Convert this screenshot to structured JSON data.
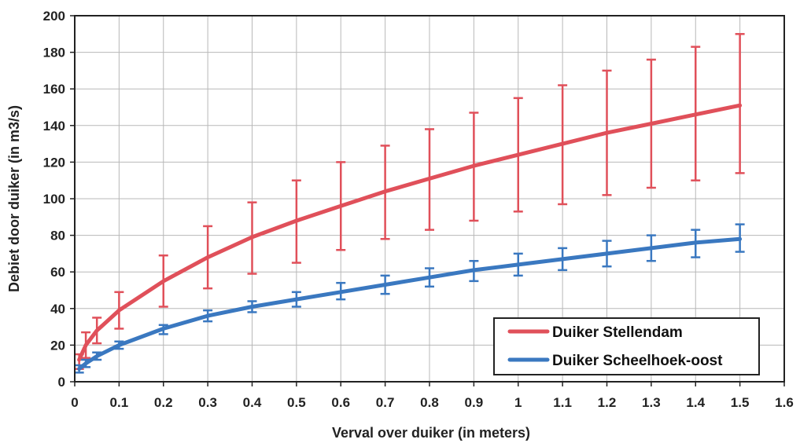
{
  "chart_data": {
    "type": "line",
    "title": "",
    "xlabel": "Verval over duiker (in meters)",
    "ylabel": "Debiet door duiker (in m3/s)",
    "xlim": [
      0,
      1.6
    ],
    "ylim": [
      0,
      200
    ],
    "x_ticks": [
      "0",
      "0.1",
      "0.2",
      "0.3",
      "0.4",
      "0.5",
      "0.6",
      "0.7",
      "0.8",
      "0.9",
      "1",
      "1.1",
      "1.2",
      "1.3",
      "1.4",
      "1.5",
      "1.6"
    ],
    "y_ticks": [
      "0",
      "20",
      "40",
      "60",
      "80",
      "100",
      "120",
      "140",
      "160",
      "180",
      "200"
    ],
    "grid": true,
    "legend_position": "bottom-right",
    "series": [
      {
        "name": "Duiker Stellendam",
        "color": "#e0505a",
        "x": [
          0.01,
          0.025,
          0.05,
          0.1,
          0.2,
          0.3,
          0.4,
          0.5,
          0.6,
          0.7,
          0.8,
          0.9,
          1.0,
          1.1,
          1.2,
          1.3,
          1.4,
          1.5
        ],
        "y": [
          12,
          20,
          28,
          39,
          55,
          68,
          79,
          88,
          96,
          104,
          111,
          118,
          124,
          130,
          136,
          141,
          146,
          151
        ],
        "err_low": [
          7,
          13,
          21,
          29,
          41,
          51,
          59,
          65,
          72,
          78,
          83,
          88,
          93,
          97,
          102,
          106,
          110,
          114
        ],
        "err_high": [
          15,
          27,
          35,
          49,
          69,
          85,
          98,
          110,
          120,
          129,
          138,
          147,
          155,
          162,
          170,
          176,
          183,
          190
        ]
      },
      {
        "name": "Duiker Scheelhoek-oost",
        "color": "#3a78c0",
        "x": [
          0.01,
          0.025,
          0.05,
          0.1,
          0.2,
          0.3,
          0.4,
          0.5,
          0.6,
          0.7,
          0.8,
          0.9,
          1.0,
          1.1,
          1.2,
          1.3,
          1.4,
          1.5
        ],
        "y": [
          7,
          10,
          14,
          20,
          29,
          36,
          41,
          45,
          49,
          53,
          57,
          61,
          64,
          67,
          70,
          73,
          76,
          78
        ],
        "err_low": [
          5,
          8,
          12,
          18,
          26,
          33,
          38,
          41,
          45,
          48,
          52,
          55,
          58,
          61,
          63,
          66,
          68,
          71
        ],
        "err_high": [
          9,
          12,
          16,
          22,
          31,
          39,
          44,
          49,
          54,
          58,
          62,
          66,
          70,
          73,
          77,
          80,
          83,
          86
        ]
      }
    ]
  }
}
